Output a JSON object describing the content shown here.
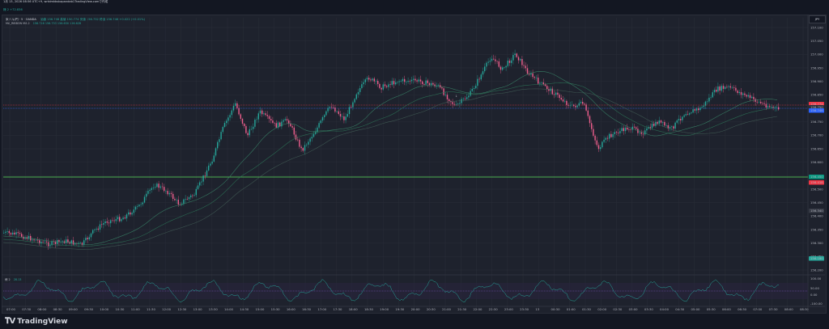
{
  "topbar": {
    "caption": "1月 13, 2026 08:56 UTC+9, wrtdmkbsbzpandab1TradingView.comで作成"
  },
  "header": {
    "symbol": "米ドル/円 · 5 · OANDA",
    "ohlc": "始値 156.768  高値 156.774  安値 156.732  終値 156.746  +0.022 (+0.01%)",
    "ema_name": "MA_RIBBON MA 2",
    "ema_values": "156.716  156.733  156.630  156.628",
    "rsi_label": "様 2  +72.836",
    "gear_label": "☸︎"
  },
  "price_axis": {
    "ticks": [
      "157.100",
      "157.050",
      "157.000",
      "156.950",
      "156.900",
      "156.850",
      "156.800",
      "156.750",
      "156.700",
      "156.650",
      "156.600",
      "156.550",
      "156.500",
      "156.450",
      "156.400",
      "156.350",
      "156.300",
      "156.250",
      "156.200"
    ],
    "badges": [
      {
        "text": "156.774",
        "color": "#f23645"
      },
      {
        "text": "156.750",
        "color": "#2a2e39"
      },
      {
        "text": "156.746",
        "color": "#2962ff"
      },
      {
        "text": "156.450",
        "color": "#089981"
      },
      {
        "text": "156.418",
        "color": "#f23645"
      },
      {
        "text": "156.340",
        "color": "#363a45"
      },
      {
        "text": "156.180",
        "color": "#26a69a"
      }
    ],
    "currency": "JPY"
  },
  "time_axis": {
    "ticks": [
      "07:00",
      "07:30",
      "08:00",
      "08:30",
      "09:00",
      "09:30",
      "10:00",
      "10:30",
      "11:00",
      "11:30",
      "12:00",
      "12:30",
      "13:00",
      "13:30",
      "14:00",
      "14:30",
      "15:00",
      "15:30",
      "16:00",
      "16:30",
      "17:00",
      "17:30",
      "18:00",
      "18:30",
      "19:00",
      "19:30",
      "20:00",
      "20:30",
      "21:00",
      "21:30",
      "22:00",
      "22:30",
      "23:00",
      "23:30",
      "13",
      "00:30",
      "01:00",
      "01:30",
      "02:00",
      "02:30",
      "03:00",
      "03:30",
      "04:00",
      "04:30",
      "05:00",
      "05:30",
      "06:00",
      "06:30",
      "07:00",
      "07:30",
      "08:00",
      "08:30"
    ]
  },
  "oscillator": {
    "label": "様 2",
    "value": "28.13",
    "ticks": [
      "100.00",
      "50.00",
      "0.00",
      "-100.00"
    ]
  },
  "footer": {
    "brand": "TradingView"
  },
  "colors": {
    "up": "#26a69a",
    "down": "#ef5f8d",
    "background": "#1e222d",
    "grid": "#2a2e39",
    "green_level": "#4caf50"
  }
}
